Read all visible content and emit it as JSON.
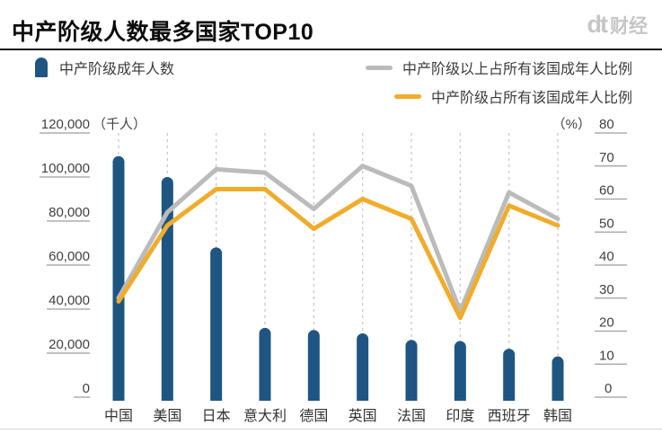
{
  "header": {
    "logo": {
      "mark": "dt",
      "text": "财经"
    }
  },
  "legend": {
    "bar_label": "中产阶级成年人数",
    "line_above_label": "中产阶级以上占所有该国成年人比例",
    "line_middle_label": "中产阶级占所有该国成年人比例"
  },
  "chart_data": {
    "type": "combo-bar-line",
    "title": "中产阶级人数最多国家TOP10",
    "categories": [
      "中国",
      "美国",
      "日本",
      "意大利",
      "德国",
      "英国",
      "法国",
      "印度",
      "西班牙",
      "韩国"
    ],
    "series": [
      {
        "name": "中产阶级成年人数",
        "type": "bar",
        "axis": "left",
        "unit": "千人",
        "color": "#1F5582",
        "values": [
          109500,
          100000,
          68000,
          31500,
          30500,
          29000,
          26000,
          25500,
          22000,
          18500
        ]
      },
      {
        "name": "中产阶级以上占所有该国成年人比例",
        "type": "line",
        "axis": "right",
        "unit": "%",
        "color": "#BBBBBB",
        "values": [
          30,
          56,
          69,
          68,
          57,
          70,
          64,
          26,
          62,
          54
        ]
      },
      {
        "name": "中产阶级占所有该国成年人比例",
        "type": "line",
        "axis": "right",
        "unit": "%",
        "color": "#F0AC2B",
        "values": [
          29,
          52,
          63,
          63,
          51,
          60,
          54,
          24,
          58,
          52
        ]
      }
    ],
    "left_axis": {
      "unit_label": "（千人）",
      "ticks": [
        "120,000",
        "100,000",
        "80,000",
        "60,000",
        "40,000",
        "20,000",
        "0"
      ],
      "range": [
        0,
        120000
      ]
    },
    "right_axis": {
      "unit_label": "（%）",
      "ticks": [
        "80",
        "70",
        "60",
        "50",
        "40",
        "30",
        "20",
        "10",
        "0"
      ],
      "range": [
        0,
        80
      ]
    },
    "grid": {
      "vertical_dashed": true
    },
    "legend_position": "top"
  }
}
